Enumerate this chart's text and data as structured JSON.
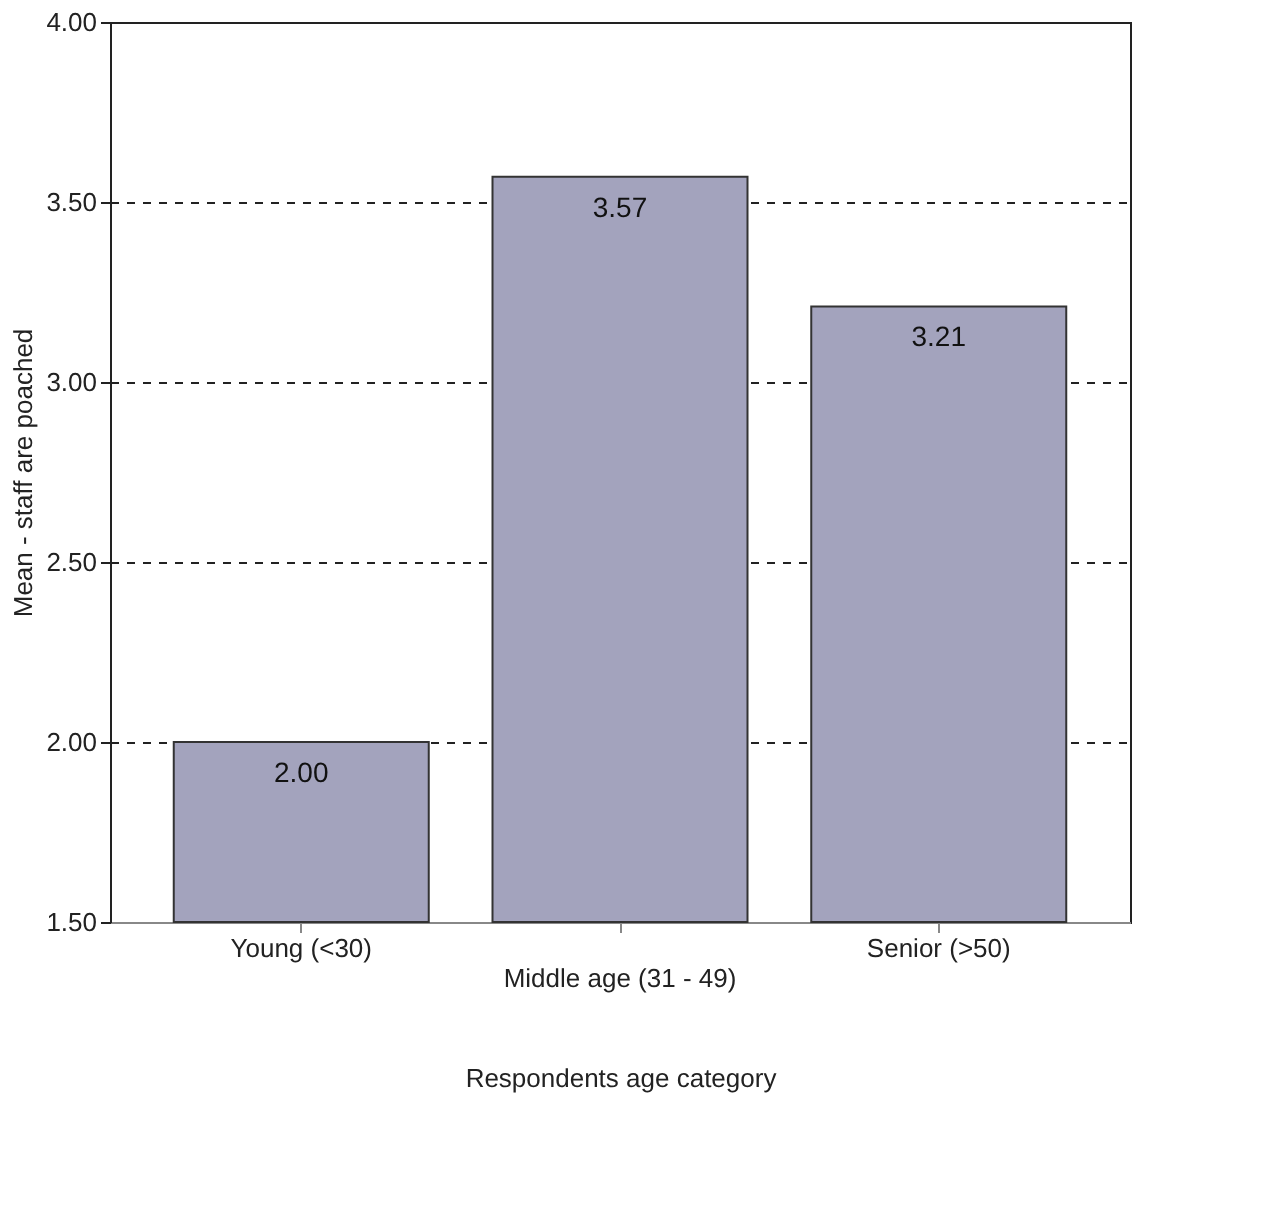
{
  "chart_data": {
    "type": "bar",
    "categories": [
      "Young (<30)",
      "Middle age (31 - 49)",
      "Senior (>50)"
    ],
    "values": [
      2.0,
      3.57,
      3.21
    ],
    "color": "#a3a3bd",
    "xlabel": "Respondents age category",
    "ylabel": "Mean - staff are poached",
    "ylim": [
      1.5,
      4.0
    ],
    "yticks": [
      {
        "value": 1.5,
        "label": "1.50"
      },
      {
        "value": 2.0,
        "label": "2.00"
      },
      {
        "value": 2.5,
        "label": "2.50"
      },
      {
        "value": 3.0,
        "label": "3.00"
      },
      {
        "value": 3.5,
        "label": "3.50"
      },
      {
        "value": 4.0,
        "label": "4.00"
      }
    ],
    "value_labels": [
      "2.00",
      "3.57",
      "3.21"
    ],
    "grid": "y",
    "line_style": "dashed"
  }
}
